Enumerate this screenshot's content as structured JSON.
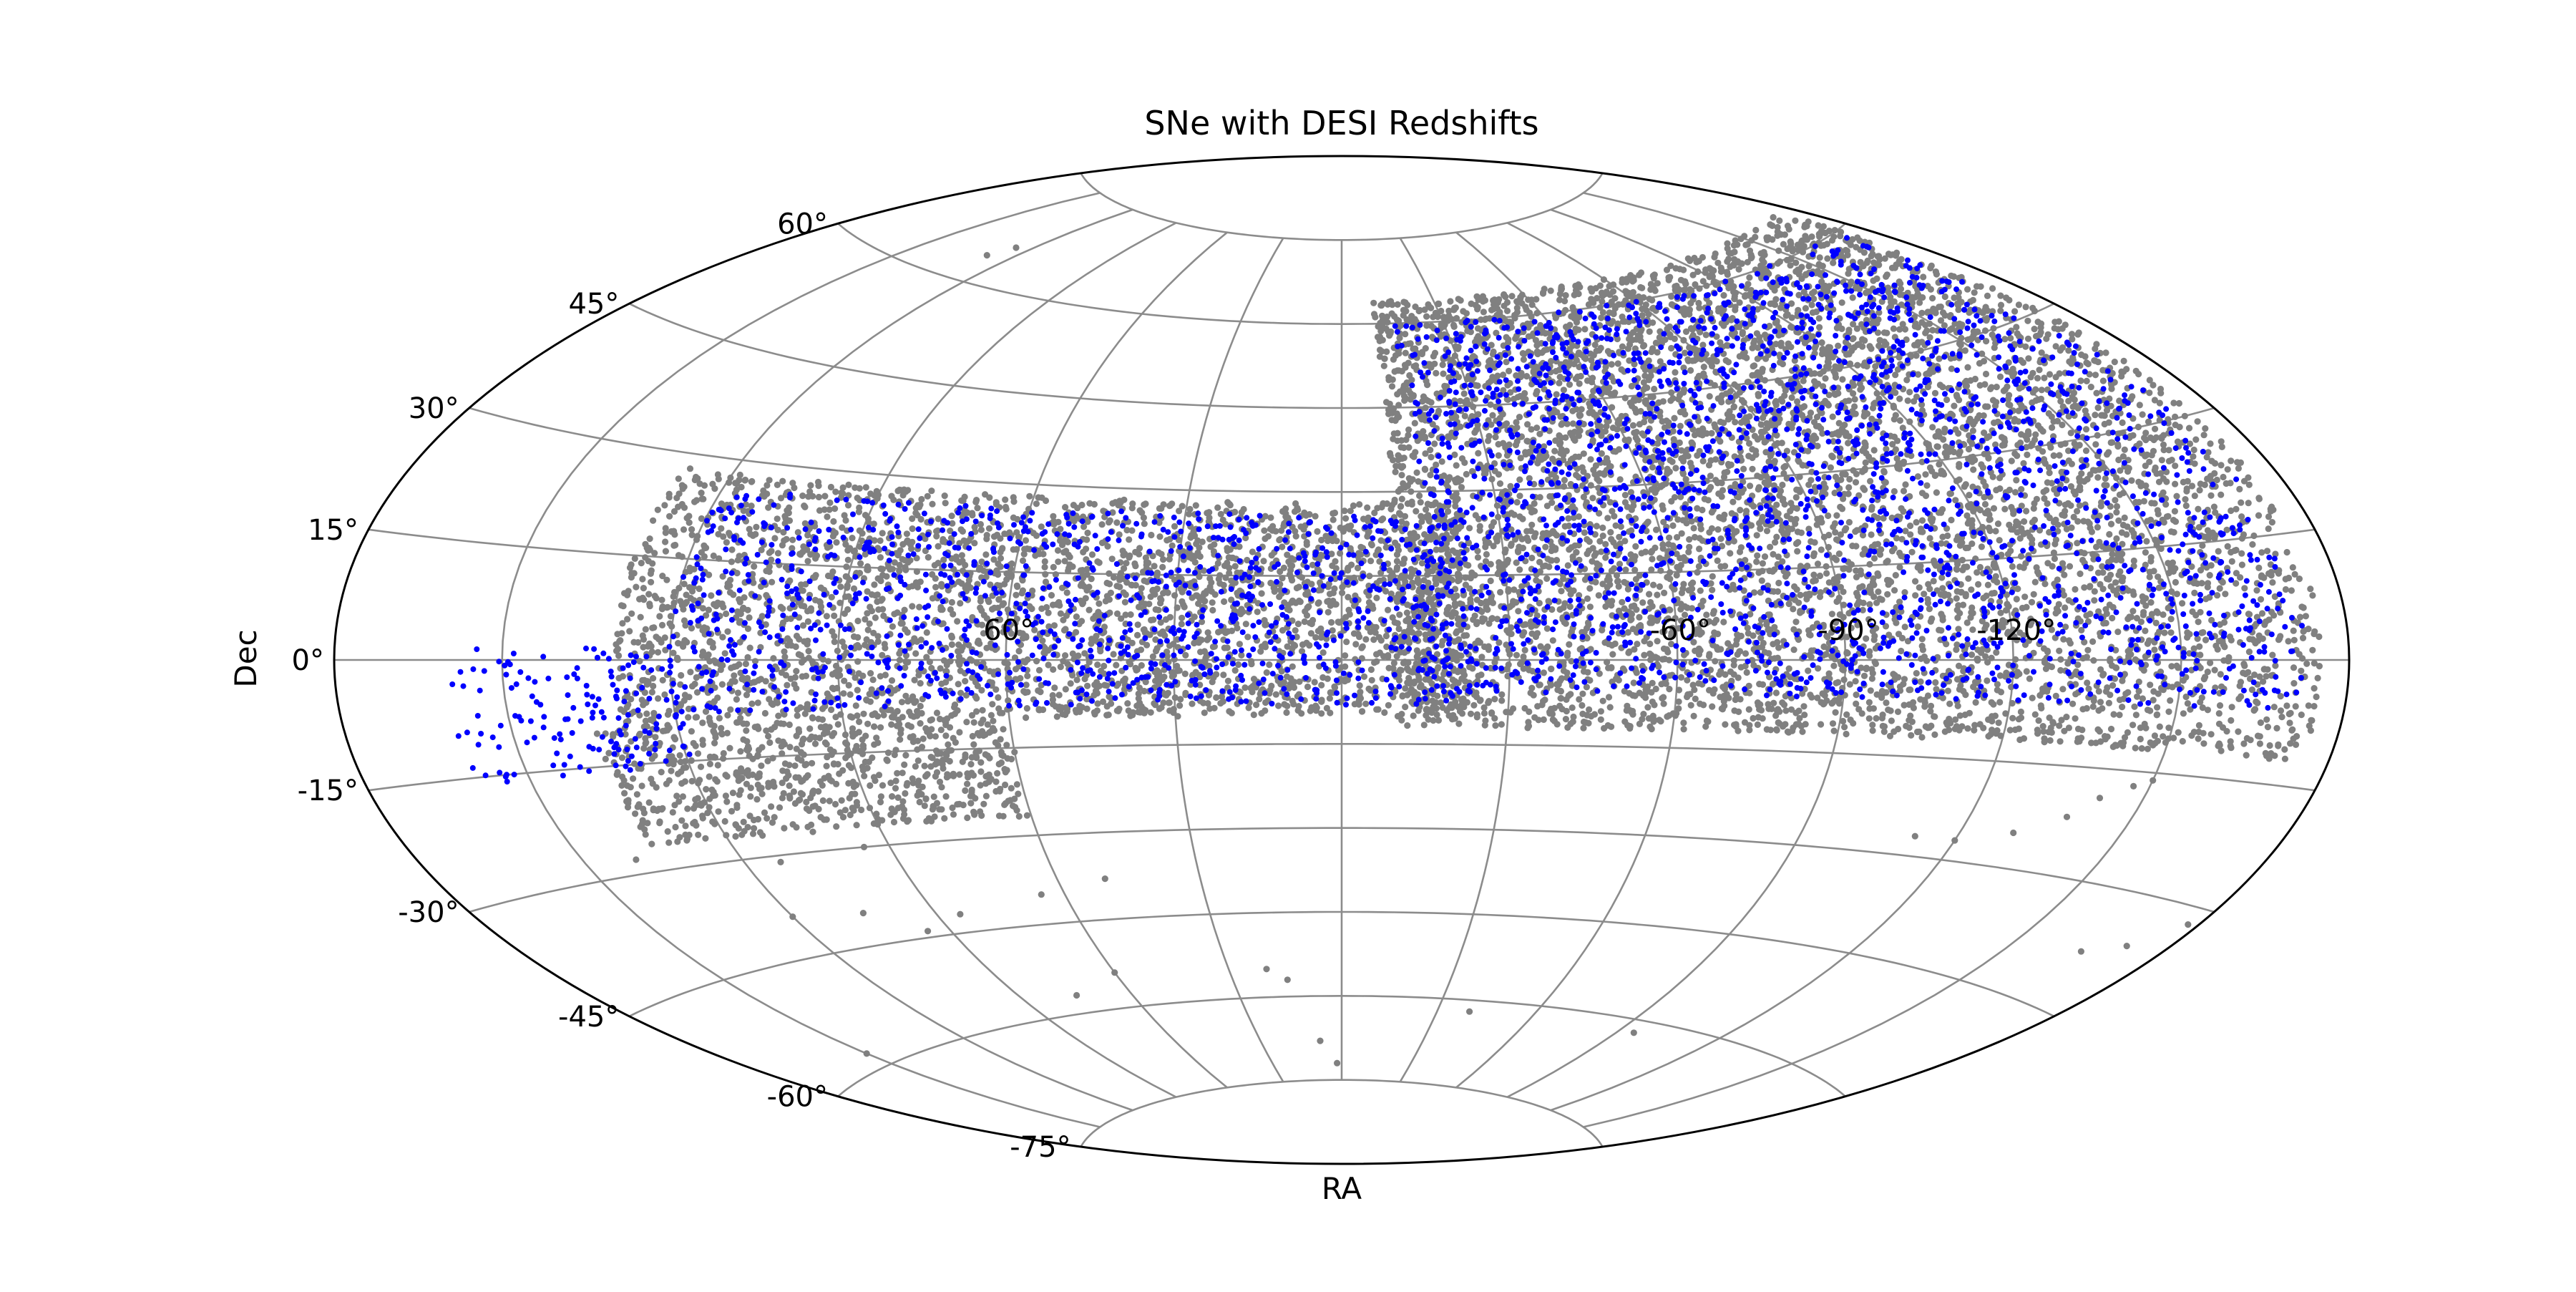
{
  "chart_data": {
    "type": "scatter",
    "projection": "aitoff",
    "title": "SNe with DESI Redshifts",
    "xlabel": "RA",
    "ylabel": "Dec",
    "xlim": [
      -180,
      180
    ],
    "ylim": [
      -90,
      90
    ],
    "grid": true,
    "legend": "none",
    "ra_ticks": [
      {
        "value": -120,
        "label": "-120°"
      },
      {
        "value": -90,
        "label": "-90°"
      },
      {
        "value": -60,
        "label": "-60°"
      },
      {
        "value": 60,
        "label": "60°"
      }
    ],
    "dec_ticks": [
      {
        "value": 60,
        "label": "60°"
      },
      {
        "value": 45,
        "label": "45°"
      },
      {
        "value": 30,
        "label": "30°"
      },
      {
        "value": 15,
        "label": "15°"
      },
      {
        "value": 0,
        "label": "0°"
      },
      {
        "value": -15,
        "label": "-15°"
      },
      {
        "value": -30,
        "label": "-30°"
      },
      {
        "value": -45,
        "label": "-45°"
      },
      {
        "value": -60,
        "label": "-60°"
      },
      {
        "value": -75,
        "label": "-75°"
      }
    ],
    "series": [
      {
        "color": "#808080",
        "regions": [
          {
            "ra": [
              -175,
              -10
            ],
            "dec": [
              -12,
              64
            ]
          },
          {
            "ra": [
              -23,
              130
            ],
            "dec": [
              -10,
              28
            ]
          },
          {
            "ra": [
              60,
              135
            ],
            "dec": [
              -27,
              -10
            ]
          }
        ],
        "points": [
          [
            -150,
            -16
          ],
          [
            -147,
            -17
          ],
          [
            -142,
            -19
          ],
          [
            -138,
            -22
          ],
          [
            -130,
            -25
          ],
          [
            -120,
            -27
          ],
          [
            -112,
            -27
          ],
          [
            -178,
            -32
          ],
          [
            -172,
            -36
          ],
          [
            -165,
            -38
          ],
          [
            -95,
            -62
          ],
          [
            -40,
            -62
          ],
          [
            15,
            -57
          ],
          [
            20,
            -55
          ],
          [
            60,
            -54
          ],
          [
            75,
            -57
          ],
          [
            50,
            -38
          ],
          [
            65,
            -40
          ],
          [
            85,
            -42
          ],
          [
            95,
            -44
          ],
          [
            105,
            -40
          ],
          [
            120,
            -39
          ],
          [
            95,
            -30
          ],
          [
            113,
            -31
          ],
          [
            140,
            -28
          ],
          [
            150,
            -58
          ],
          [
            2,
            -72
          ],
          [
            8,
            -68
          ],
          [
            125,
            66
          ],
          [
            128,
            64
          ]
        ]
      },
      {
        "color": "#0000ff",
        "regions": [
          {
            "ra": [
              -172,
              -15
            ],
            "dec": [
              -6,
              60
            ]
          },
          {
            "ra": [
              -20,
              120
            ],
            "dec": [
              -8,
              26
            ]
          },
          {
            "ra": [
              118,
              160
            ],
            "dec": [
              -16,
              2
            ]
          }
        ],
        "points": []
      }
    ]
  }
}
